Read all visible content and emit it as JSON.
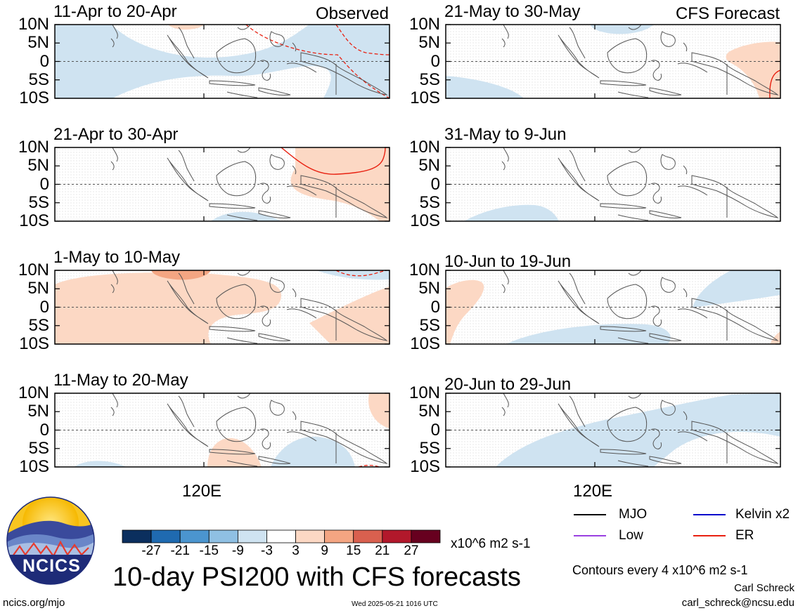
{
  "chart_data": {
    "type": "heatmap",
    "title": "10-day PSI200 with CFS forecasts",
    "variable": "PSI200 anomaly",
    "units": "x10^6 m2 s-1",
    "domain": {
      "lon_label": "120E",
      "lat_ticks": [
        "10N",
        "5N",
        "0",
        "5S",
        "10S"
      ],
      "lat_range": [
        -10,
        10
      ]
    },
    "panels": [
      {
        "id": "p1",
        "title": "11-Apr to 20-Apr",
        "tag": "Observed",
        "source": "observed"
      },
      {
        "id": "p2",
        "title": "21-Apr to 30-Apr",
        "tag": "",
        "source": "observed"
      },
      {
        "id": "p3",
        "title": "1-May to 10-May",
        "tag": "",
        "source": "observed"
      },
      {
        "id": "p4",
        "title": "11-May to 20-May",
        "tag": "",
        "source": "observed"
      },
      {
        "id": "p5",
        "title": "21-May to 30-May",
        "tag": "CFS Forecast",
        "source": "forecast"
      },
      {
        "id": "p6",
        "title": "31-May to 9-Jun",
        "tag": "",
        "source": "forecast"
      },
      {
        "id": "p7",
        "title": "10-Jun to 19-Jun",
        "tag": "",
        "source": "forecast"
      },
      {
        "id": "p8",
        "title": "20-Jun to 29-Jun",
        "tag": "",
        "source": "forecast"
      }
    ],
    "colorbar": {
      "ticks": [
        "-27",
        "-21",
        "-15",
        "-9",
        "-3",
        "3",
        "9",
        "15",
        "21",
        "27"
      ],
      "colors": [
        "#0b2f5e",
        "#1f6ab0",
        "#4b95cf",
        "#8fc0e3",
        "#cfe3f1",
        "#ffffff",
        "#fcd8c4",
        "#f4a582",
        "#d9604f",
        "#b2182b",
        "#67001f"
      ],
      "units": "x10^6 m2 s-1"
    },
    "contour_legend": [
      {
        "label": "MJO",
        "color": "#000000"
      },
      {
        "label": "Kelvin x2",
        "color": "#0000cc"
      },
      {
        "label": "Low",
        "color": "#9a40e0"
      },
      {
        "label": "ER",
        "color": "#e82010"
      }
    ],
    "contour_note": "Contours every 4 x10^6 m2 s-1"
  },
  "branding": {
    "logo_text": "NCICS"
  },
  "footer": {
    "left": "ncics.org/mjo",
    "center": "Wed 2025-05-21 1016 UTC",
    "author": "Carl Schreck",
    "email": "carl_schreck@ncsu.edu"
  }
}
